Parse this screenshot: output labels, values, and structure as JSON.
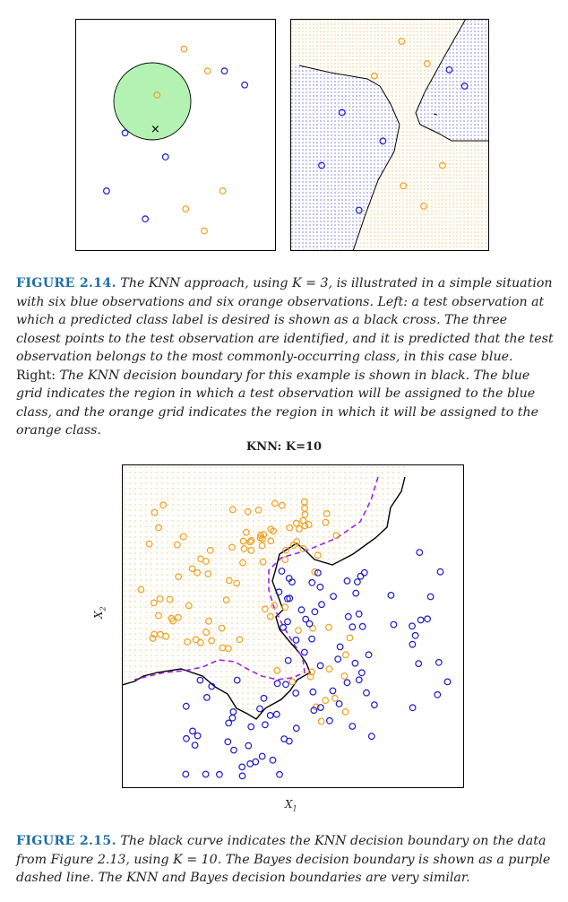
{
  "figure_214": {
    "label": "FIGURE 2.14.",
    "text_a": "The KNN approach, using ",
    "k_expr": "K = 3",
    "text_b": ", is illustrated in a simple situation with six blue observations and six orange observations. Left: a test observation at which a predicted class label is desired is shown as a black cross. The three closest points to the test observation are identified, and it is predicted that the test observation belongs to the most commonly-occurring class, in this case blue.",
    "right_word": "Right:",
    "text_c": "The KNN decision boundary for this example is shown in black. The blue grid indicates the region in which a test observation will be assigned to the blue class, and the orange grid indicates the region in which it will be assigned to the orange class."
  },
  "figure_215": {
    "plot_title": "KNN: K=10",
    "x_label": "X",
    "x_sub": "1",
    "y_label": "X",
    "y_sub": "2",
    "label": "FIGURE 2.15.",
    "text_a": "The black curve indicates the KNN decision boundary on the data from Figure 2.13, using ",
    "k_expr": "K = 10",
    "text_b": ". The Bayes decision boundary is shown as a purple dashed line. The KNN and Bayes decision boundaries are very similar."
  },
  "colors": {
    "blue": "#1a1acc",
    "orange": "#f0a020",
    "purple": "#a020f0",
    "circle_fill": "#b3f2b3",
    "caption_blue": "#1f6fa6"
  },
  "chart_data": [
    {
      "type": "scatter",
      "panel": "left",
      "series": [
        {
          "class": "blue",
          "points": [
            [
              0.79,
              0.82
            ],
            [
              0.91,
              0.75
            ],
            [
              0.2,
              0.51
            ],
            [
              0.44,
              0.39
            ],
            [
              0.09,
              0.22
            ],
            [
              0.32,
              0.08
            ]
          ]
        },
        {
          "class": "orange",
          "points": [
            [
              0.55,
              0.93
            ],
            [
              0.69,
              0.82
            ],
            [
              0.39,
              0.7
            ],
            [
              0.78,
              0.22
            ],
            [
              0.56,
              0.13
            ],
            [
              0.67,
              0.02
            ]
          ]
        }
      ],
      "test_point": [
        0.38,
        0.53
      ]
    },
    {
      "type": "scatter",
      "panel": "right",
      "series": [
        {
          "class": "blue",
          "points": [
            [
              0.85,
              0.82
            ],
            [
              0.94,
              0.74
            ],
            [
              0.22,
              0.61
            ],
            [
              0.46,
              0.47
            ],
            [
              0.1,
              0.35
            ],
            [
              0.32,
              0.13
            ]
          ]
        },
        {
          "class": "orange",
          "points": [
            [
              0.57,
              0.96
            ],
            [
              0.72,
              0.85
            ],
            [
              0.41,
              0.79
            ],
            [
              0.81,
              0.35
            ],
            [
              0.58,
              0.25
            ],
            [
              0.7,
              0.15
            ]
          ]
        }
      ]
    },
    {
      "type": "scatter",
      "panel": "knn_k10",
      "title": "KNN: K=10",
      "series": [
        {
          "class": "blue",
          "n": 100
        },
        {
          "class": "orange",
          "n": 100
        }
      ]
    }
  ]
}
